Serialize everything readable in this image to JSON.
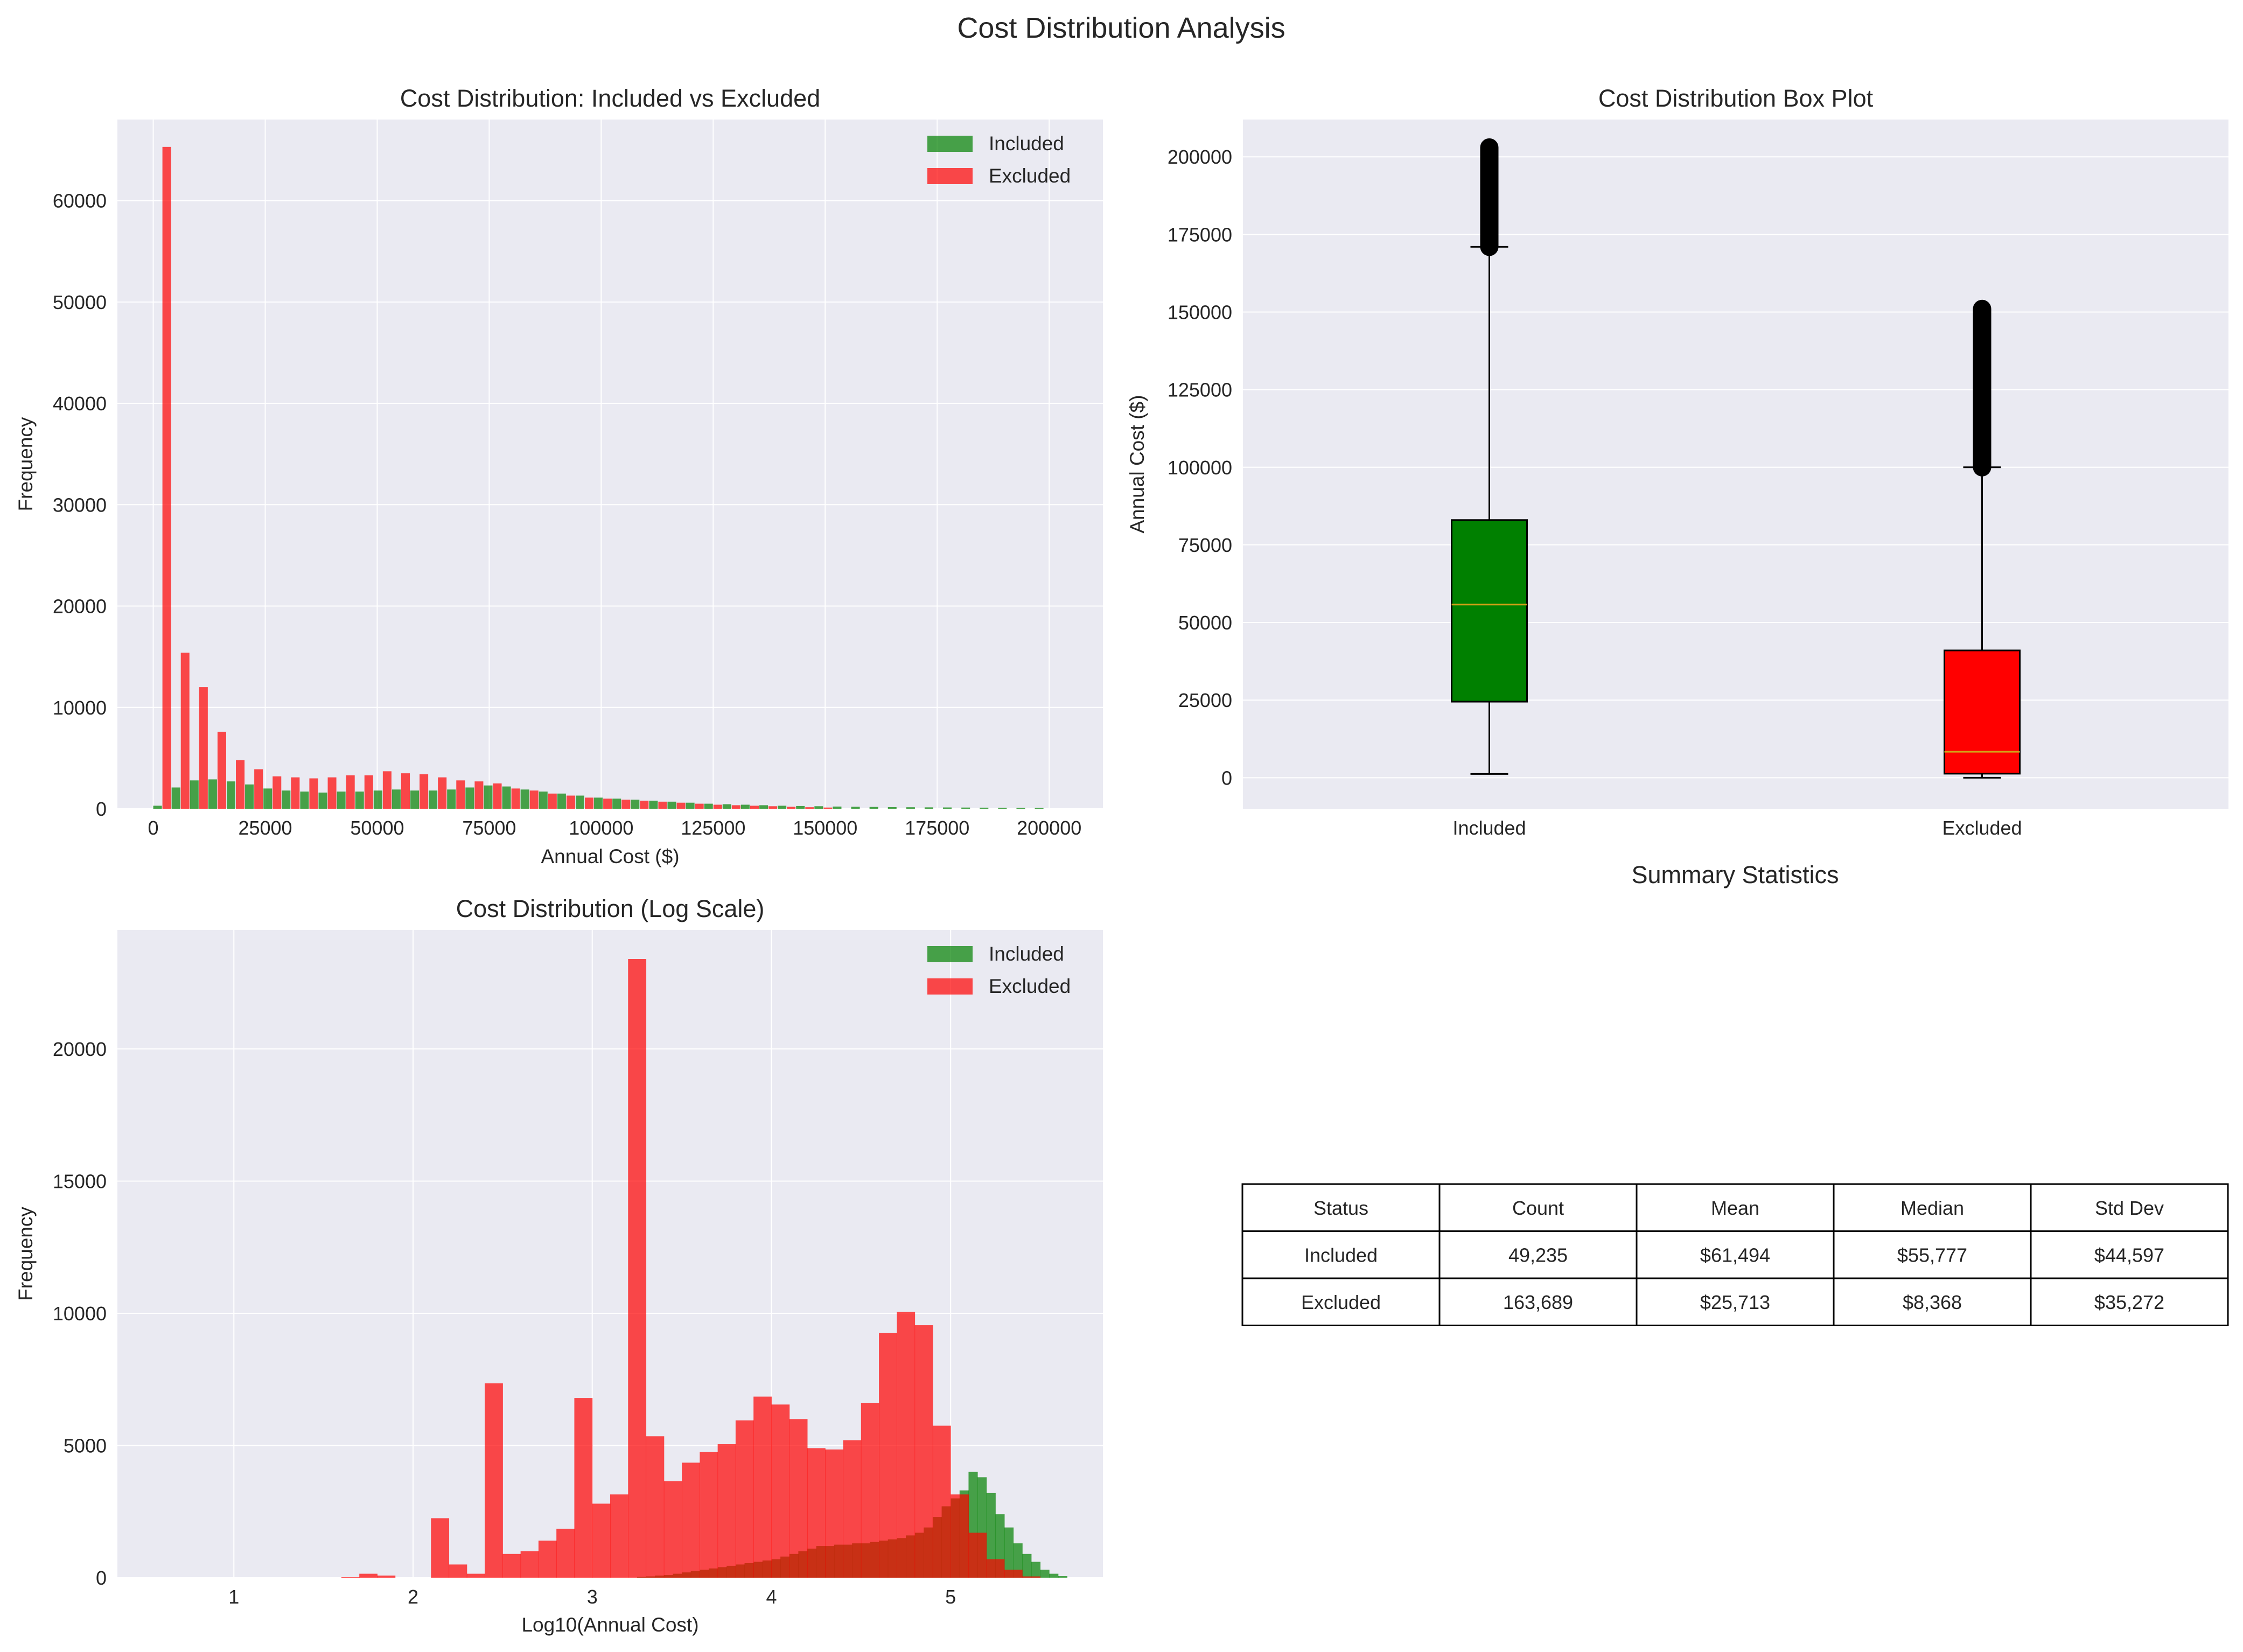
{
  "figure": {
    "title": "Cost Distribution Analysis"
  },
  "colors": {
    "included": "#008000",
    "excluded": "#ff0000",
    "median": "#d4a017",
    "axes_bg": "#eaeaf2",
    "grid": "#ffffff",
    "text": "#262626"
  },
  "chart_data": [
    {
      "id": "hist",
      "type": "bar",
      "title": "Cost Distribution: Included vs Excluded",
      "xlabel": "Annual Cost ($)",
      "ylabel": "Frequency",
      "xlim": [
        -8000,
        212000
      ],
      "ylim": [
        0,
        68000
      ],
      "xticks": [
        0,
        25000,
        50000,
        75000,
        100000,
        125000,
        150000,
        175000,
        200000
      ],
      "yticks": [
        0,
        10000,
        20000,
        30000,
        40000,
        50000,
        60000
      ],
      "bin_start": 0,
      "bin_width": 4100,
      "legend": "top-right",
      "grid": true,
      "series": [
        {
          "name": "Included",
          "color": "#008000",
          "values": [
            300,
            2100,
            2800,
            2900,
            2700,
            2400,
            2000,
            1800,
            1700,
            1600,
            1700,
            1700,
            1800,
            1900,
            1800,
            1800,
            1900,
            2100,
            2300,
            2200,
            1900,
            1700,
            1500,
            1300,
            1100,
            1000,
            900,
            800,
            700,
            600,
            500,
            450,
            400,
            350,
            300,
            270,
            250,
            220,
            200,
            180,
            160,
            150,
            140,
            130,
            120,
            110,
            100,
            90,
            80
          ]
        },
        {
          "name": "Excluded",
          "color": "#ff0000",
          "values": [
            65300,
            15400,
            12000,
            7600,
            4800,
            3900,
            3200,
            3100,
            3000,
            3100,
            3300,
            3300,
            3700,
            3500,
            3400,
            3100,
            2800,
            2700,
            2500,
            2000,
            1800,
            1500,
            1300,
            1100,
            1000,
            900,
            800,
            700,
            600,
            500,
            400,
            350,
            300,
            250,
            200,
            150,
            120,
            0,
            0,
            0,
            0,
            0,
            0,
            0,
            0,
            0,
            0,
            0,
            0
          ]
        }
      ]
    },
    {
      "id": "box",
      "type": "box",
      "title": "Cost Distribution Box Plot",
      "ylabel": "Annual Cost ($)",
      "ylim": [
        -10000,
        212000
      ],
      "yticks": [
        0,
        25000,
        50000,
        75000,
        100000,
        125000,
        150000,
        175000,
        200000
      ],
      "categories": [
        "Included",
        "Excluded"
      ],
      "grid": true,
      "boxes": [
        {
          "name": "Included",
          "color": "#008000",
          "q1": 24500,
          "median": 55777,
          "q3": 83000,
          "whisker_low": 1200,
          "whisker_high": 171000,
          "outlier_min": 171000,
          "outlier_max": 203000
        },
        {
          "name": "Excluded",
          "color": "#ff0000",
          "q1": 1300,
          "median": 8368,
          "q3": 41000,
          "whisker_low": 0,
          "whisker_high": 100000,
          "outlier_min": 100000,
          "outlier_max": 151000
        }
      ]
    },
    {
      "id": "log",
      "type": "bar",
      "title": "Cost Distribution (Log Scale)",
      "xlabel": "Log10(Annual Cost)",
      "ylabel": "Frequency",
      "xlim": [
        0.35,
        5.85
      ],
      "ylim": [
        0,
        24500
      ],
      "xticks": [
        1,
        2,
        3,
        4,
        5
      ],
      "yticks": [
        0,
        5000,
        10000,
        15000,
        20000
      ],
      "legend": "top-right",
      "grid": true,
      "series": [
        {
          "name": "Included",
          "color": "#008000",
          "bin_start": 3.25,
          "bin_width": 0.05,
          "values": [
            30,
            50,
            80,
            100,
            150,
            200,
            250,
            300,
            350,
            400,
            450,
            500,
            550,
            600,
            650,
            700,
            800,
            900,
            1000,
            1100,
            1200,
            1200,
            1250,
            1250,
            1300,
            1300,
            1350,
            1400,
            1450,
            1500,
            1600,
            1700,
            1900,
            2300,
            2700,
            3000,
            3300,
            4000,
            3800,
            3200,
            2400,
            1900,
            1300,
            900,
            600,
            300,
            150,
            60
          ]
        },
        {
          "name": "Excluded",
          "color": "#ff0000",
          "bin_start": 1.6,
          "bin_width": 0.1,
          "values": [
            20,
            150,
            80,
            0,
            0,
            2250,
            500,
            150,
            7350,
            900,
            1000,
            1400,
            1850,
            6800,
            2800,
            3150,
            23400,
            5350,
            3650,
            4350,
            4750,
            5050,
            5950,
            6850,
            6550,
            6000,
            4900,
            4850,
            5200,
            6600,
            9250,
            10050,
            9550,
            5750,
            3150,
            1700,
            700,
            300,
            50
          ]
        }
      ]
    }
  ],
  "summary": {
    "title": "Summary Statistics",
    "headers": [
      "Status",
      "Count",
      "Mean",
      "Median",
      "Std Dev"
    ],
    "rows": [
      [
        "Included",
        "49,235",
        "$61,494",
        "$55,777",
        "$44,597"
      ],
      [
        "Excluded",
        "163,689",
        "$25,713",
        "$8,368",
        "$35,272"
      ]
    ]
  }
}
